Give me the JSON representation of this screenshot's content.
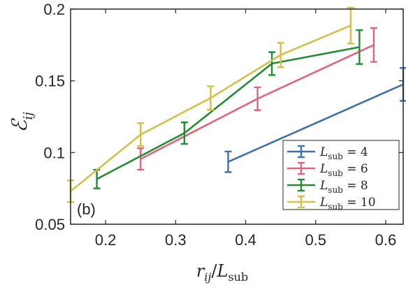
{
  "chart_data": {
    "type": "line",
    "panel_label": "(b)",
    "xlabel": "r_ij / L_sub",
    "xlabel_parts": {
      "main": "r",
      "sub": "ij",
      "sep": "/",
      "L": "L",
      "Lsub": "sub"
    },
    "ylabel": "E_ij",
    "ylabel_parts": {
      "main": "ℰ",
      "sub": "ij"
    },
    "xlim": [
      0.15,
      0.625
    ],
    "ylim": [
      0.05,
      0.2
    ],
    "xticks": [
      0.2,
      0.3,
      0.4,
      0.5,
      0.6
    ],
    "xtick_labels": [
      "0.2",
      "0.3",
      "0.4",
      "0.5",
      "0.6"
    ],
    "yticks": [
      0.05,
      0.1,
      0.15,
      0.2
    ],
    "ytick_labels": [
      "0.05",
      "0.1",
      "0.15",
      "0.2"
    ],
    "grid": false,
    "legend_position": "bottom-right",
    "series": [
      {
        "name": "L_sub = 4",
        "legend_parts": {
          "L": "L",
          "sub": "sub",
          "rest": " = 4"
        },
        "color": "#3d72a8",
        "x": [
          0.375,
          0.625
        ],
        "y": [
          0.0935,
          0.1475
        ],
        "err": [
          0.0072,
          0.0115
        ]
      },
      {
        "name": "L_sub = 6",
        "legend_parts": {
          "L": "L",
          "sub": "sub",
          "rest": " = 6"
        },
        "color": "#e1657a",
        "x": [
          0.25,
          0.417,
          0.583
        ],
        "y": [
          0.0955,
          0.1375,
          0.175
        ],
        "err": [
          0.0075,
          0.008,
          0.0118
        ]
      },
      {
        "name": "L_sub = 8",
        "legend_parts": {
          "L": "L",
          "sub": "sub",
          "rest": " = 8"
        },
        "color": "#238b33",
        "x": [
          0.1875,
          0.3125,
          0.4375,
          0.5625
        ],
        "y": [
          0.0815,
          0.1135,
          0.162,
          0.1735
        ],
        "err": [
          0.0065,
          0.0075,
          0.008,
          0.0118
        ]
      },
      {
        "name": "L_sub = 10",
        "legend_parts": {
          "L": "L",
          "sub": "sub",
          "rest": " = 10"
        },
        "color": "#d1c04a",
        "x": [
          0.15,
          0.25,
          0.35,
          0.45,
          0.55
        ],
        "y": [
          0.073,
          0.1125,
          0.138,
          0.168,
          0.1885
        ],
        "err": [
          0.0075,
          0.008,
          0.0082,
          0.0085,
          0.0125
        ]
      }
    ]
  }
}
